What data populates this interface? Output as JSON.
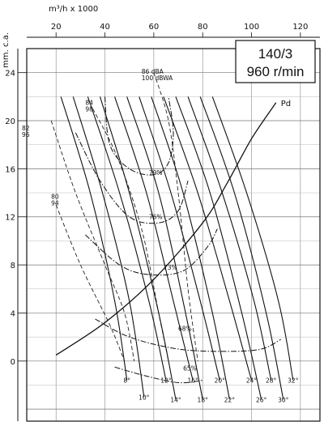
{
  "chart_data": {
    "type": "line",
    "title": "140/3",
    "subtitle": "960 r/min",
    "xlabel": "m³/h x 1000",
    "ylabel": "mm. c.a.",
    "xlim": [
      8,
      128
    ],
    "ylim": [
      -5,
      26
    ],
    "x_ticks": [
      20,
      40,
      60,
      80,
      100,
      120
    ],
    "y_ticks": [
      0,
      4,
      8,
      12,
      16,
      20,
      24
    ],
    "grid": true,
    "pd_label": "Pd",
    "pd_curve": [
      [
        20,
        0.5
      ],
      [
        40,
        3.2
      ],
      [
        60,
        6.8
      ],
      [
        80,
        11.5
      ],
      [
        90,
        14.8
      ],
      [
        100,
        18.5
      ],
      [
        110,
        21.5
      ]
    ],
    "blade_angles": [
      {
        "label": "8°",
        "tip": [
          49,
          -1.6
        ],
        "points": [
          [
            22,
            22
          ],
          [
            34,
            14
          ],
          [
            44,
            5
          ],
          [
            49,
            -1.6
          ]
        ]
      },
      {
        "label": "10°",
        "tip": [
          56,
          -3.0
        ],
        "points": [
          [
            27,
            22
          ],
          [
            39,
            14
          ],
          [
            50,
            5
          ],
          [
            56,
            -3.0
          ]
        ]
      },
      {
        "label": "12°",
        "tip": [
          65,
          -1.6
        ],
        "points": [
          [
            33,
            22
          ],
          [
            46,
            14
          ],
          [
            58,
            5
          ],
          [
            65,
            -1.6
          ]
        ]
      },
      {
        "label": "14°",
        "tip": [
          69,
          -3.2
        ],
        "points": [
          [
            38,
            22
          ],
          [
            50,
            14
          ],
          [
            62,
            4
          ],
          [
            69,
            -3.2
          ]
        ]
      },
      {
        "label": "16°",
        "tip": [
          76,
          -1.6
        ],
        "points": [
          [
            44,
            22
          ],
          [
            57,
            14
          ],
          [
            68,
            5
          ],
          [
            76,
            -1.6
          ]
        ]
      },
      {
        "label": "18°",
        "tip": [
          80,
          -3.2
        ],
        "points": [
          [
            49,
            22
          ],
          [
            62,
            14
          ],
          [
            73,
            4
          ],
          [
            80,
            -3.2
          ]
        ]
      },
      {
        "label": "20°",
        "tip": [
          87,
          -1.6
        ],
        "points": [
          [
            54,
            22
          ],
          [
            67,
            14
          ],
          [
            79,
            5
          ],
          [
            87,
            -1.6
          ]
        ]
      },
      {
        "label": "22°",
        "tip": [
          91,
          -3.2
        ],
        "points": [
          [
            59,
            22
          ],
          [
            72,
            14
          ],
          [
            84,
            4
          ],
          [
            91,
            -3.2
          ]
        ]
      },
      {
        "label": "24°",
        "tip": [
          100,
          -1.6
        ],
        "points": [
          [
            64,
            22
          ],
          [
            78,
            14
          ],
          [
            91,
            5
          ],
          [
            100,
            -1.6
          ]
        ]
      },
      {
        "label": "26°",
        "tip": [
          104,
          -3.2
        ],
        "points": [
          [
            69,
            22
          ],
          [
            83,
            14
          ],
          [
            96,
            4
          ],
          [
            104,
            -3.2
          ]
        ]
      },
      {
        "label": "28°",
        "tip": [
          108,
          -1.6
        ],
        "points": [
          [
            74,
            22
          ],
          [
            88,
            14
          ],
          [
            101,
            5
          ],
          [
            108,
            -1.6
          ]
        ]
      },
      {
        "label": "30°",
        "tip": [
          113,
          -3.2
        ],
        "points": [
          [
            79,
            22
          ],
          [
            93,
            14
          ],
          [
            106,
            4
          ],
          [
            113,
            -3.2
          ]
        ]
      },
      {
        "label": "32°",
        "tip": [
          117,
          -1.6
        ],
        "points": [
          [
            84,
            22
          ],
          [
            98,
            14
          ],
          [
            111,
            5
          ],
          [
            117,
            -1.6
          ]
        ]
      }
    ],
    "efficiency_curves": [
      {
        "label": "79%",
        "points": [
          [
            40,
            22
          ],
          [
            42,
            18
          ],
          [
            50,
            16
          ],
          [
            60,
            15.5
          ],
          [
            66,
            16.5
          ],
          [
            68,
            19
          ],
          [
            66,
            22
          ]
        ]
      },
      {
        "label": "76%",
        "points": [
          [
            28,
            19
          ],
          [
            38,
            15
          ],
          [
            50,
            12
          ],
          [
            62,
            11.5
          ],
          [
            70,
            12.5
          ],
          [
            74,
            15
          ]
        ]
      },
      {
        "label": "73%",
        "points": [
          [
            32,
            10.5
          ],
          [
            46,
            8
          ],
          [
            58,
            7.2
          ],
          [
            72,
            7.5
          ],
          [
            82,
            9.5
          ],
          [
            86,
            11
          ]
        ]
      },
      {
        "label": "68%",
        "points": [
          [
            36,
            3.5
          ],
          [
            50,
            2
          ],
          [
            70,
            1
          ],
          [
            90,
            0.8
          ],
          [
            104,
            1
          ],
          [
            112,
            1.8
          ]
        ]
      },
      {
        "label": "65%",
        "points": [
          [
            44,
            -0.5
          ],
          [
            56,
            -1.2
          ],
          [
            70,
            -1.8
          ],
          [
            80,
            -1.6
          ]
        ]
      }
    ],
    "noise_curves": [
      {
        "label_1": "86 dBA",
        "label_2": "100 dBWA",
        "points": [
          [
            60,
            24
          ],
          [
            66,
            20
          ],
          [
            70,
            14
          ],
          [
            74,
            6
          ],
          [
            78,
            0
          ]
        ]
      },
      {
        "label_1": "84",
        "label_2": "98",
        "points": [
          [
            35,
            21
          ],
          [
            45,
            17
          ],
          [
            55,
            11
          ],
          [
            62,
            4
          ],
          [
            66,
            0
          ]
        ]
      },
      {
        "label_1": "82",
        "label_2": "96",
        "points": [
          [
            18,
            20
          ],
          [
            28,
            14
          ],
          [
            40,
            8
          ],
          [
            48,
            4
          ],
          [
            52,
            0
          ]
        ]
      },
      {
        "label_1": "80",
        "label_2": "94",
        "points": [
          [
            20,
            13
          ],
          [
            30,
            8
          ],
          [
            42,
            3
          ],
          [
            48,
            0
          ]
        ]
      }
    ],
    "efficiency_label_positions": [
      [
        58,
        15.5
      ],
      [
        58,
        11.8
      ],
      [
        64,
        7.6
      ],
      [
        70,
        2.5
      ],
      [
        72,
        -0.8
      ]
    ],
    "noise_label_positions": [
      [
        55,
        23.9
      ],
      [
        32,
        21.3
      ],
      [
        6,
        19.2
      ],
      [
        18,
        13.5
      ]
    ]
  }
}
